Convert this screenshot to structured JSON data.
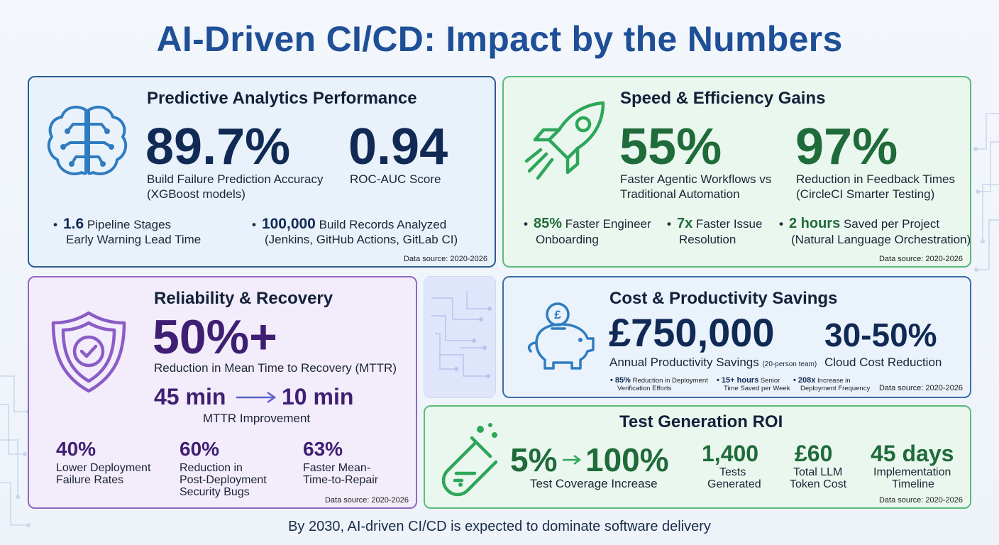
{
  "title": "AI-Driven CI/CD: Impact by the Numbers",
  "footer": "By 2030, AI-driven CI/CD is expected to dominate software delivery",
  "colors": {
    "title": "#1f4f96",
    "navy": "#112a55",
    "green": "#1f6b3a",
    "purple": "#3f1f73"
  },
  "predictive": {
    "title": "Predictive Analytics Performance",
    "icon": "brain-icon",
    "stat1_value": "89.7%",
    "stat1_label1": "Build Failure Prediction Accuracy",
    "stat1_label2": "(XGBoost models)",
    "stat2_value": "0.94",
    "stat2_label": "ROC-AUC Score",
    "b1_value": "1.6",
    "b1_text": "Pipeline Stages",
    "b1_text2": "Early Warning Lead Time",
    "b2_value": "100,000",
    "b2_text": "Build Records Analyzed",
    "b2_text2": "(Jenkins, GitHub Actions, GitLab CI)",
    "source": "Data source: 2020-2026"
  },
  "speed": {
    "title": "Speed & Efficiency Gains",
    "icon": "rocket-icon",
    "stat1_value": "55%",
    "stat1_label1": "Faster Agentic Workflows vs",
    "stat1_label2": "Traditional Automation",
    "stat2_value": "97%",
    "stat2_label1": "Reduction in Feedback Times",
    "stat2_label2": "(CircleCI Smarter Testing)",
    "b1_value": "85%",
    "b1_text": "Faster Engineer",
    "b1_text2": "Onboarding",
    "b2_value": "7x",
    "b2_text": "Faster Issue",
    "b2_text2": "Resolution",
    "b3_value": "2 hours",
    "b3_text": "Saved per Project",
    "b3_text2": "(Natural Language Orchestration)",
    "source": "Data source: 2020-2026"
  },
  "reliability": {
    "title": "Reliability & Recovery",
    "icon": "shield-check-icon",
    "stat_value": "50%+",
    "stat_label": "Reduction in Mean Time to Recovery (MTTR)",
    "from": "45 min",
    "to": "10 min",
    "arrow_label": "MTTR Improvement",
    "m1_value": "40%",
    "m1_l1": "Lower Deployment",
    "m1_l2": "Failure Rates",
    "m2_value": "60%",
    "m2_l1": "Reduction in",
    "m2_l2": "Post-Deployment",
    "m2_l3": "Security Bugs",
    "m3_value": "63%",
    "m3_l1": "Faster Mean-",
    "m3_l2": "Time-to-Repair",
    "source": "Data source: 2020-2026"
  },
  "cost": {
    "title": "Cost & Productivity Savings",
    "icon": "piggy-bank-icon",
    "stat1_value": "£750,000",
    "stat1_label": "Annual Productivity Savings",
    "stat1_note": "(20-person team)",
    "stat2_value": "30-50%",
    "stat2_label": "Cloud Cost Reduction",
    "b1_value": "85%",
    "b1_text": "Reduction in Deployment",
    "b1_text2": "Verification Efforts",
    "b2_value": "15+ hours",
    "b2_text": "Senior",
    "b2_text2": "Time Saved per Week",
    "b3_value": "208x",
    "b3_text": "Increase in",
    "b3_text2": "Deployment Frequency",
    "source": "Data source: 2020-2026"
  },
  "test": {
    "title": "Test Generation ROI",
    "icon": "test-tube-icon",
    "from": "5%",
    "to": "100%",
    "coverage_label": "Test Coverage Increase",
    "m1_value": "1,400",
    "m1_l1": "Tests",
    "m1_l2": "Generated",
    "m2_value": "£60",
    "m2_l1": "Total LLM",
    "m2_l2": "Token Cost",
    "m3_value": "45 days",
    "m3_l1": "Implementation",
    "m3_l2": "Timeline",
    "source": "Data source: 2020-2026"
  }
}
